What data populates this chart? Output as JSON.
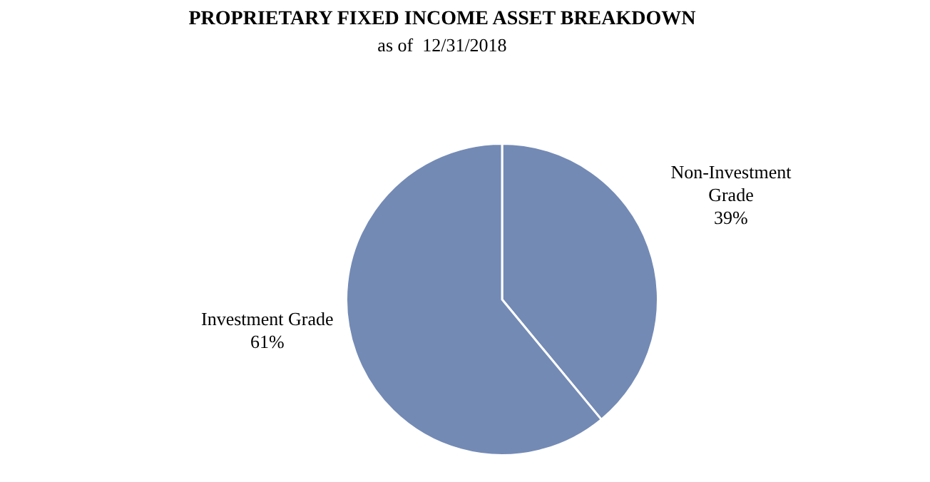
{
  "chart_data": {
    "type": "pie",
    "title": "PROPRIETARY FIXED INCOME ASSET BREAKDOWN",
    "subtitle": "as of  12/31/2018",
    "categories": [
      "Non-Investment Grade",
      "Investment Grade"
    ],
    "values": [
      39,
      61
    ],
    "colors": [
      "#738ab5",
      "#738ab5"
    ],
    "value_labels": [
      "39%",
      "61%"
    ],
    "legend": false
  }
}
